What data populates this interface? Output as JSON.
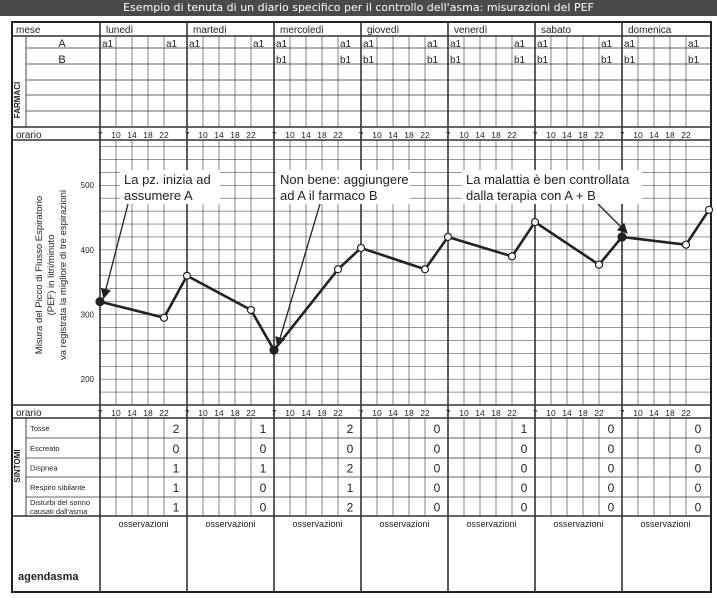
{
  "title": "Esempio di tenuta di un diario specifico per il controllo dell'asma: misurazioni del PEF",
  "days": [
    "lunedì",
    "martedì",
    "mercoledì",
    "giovedì",
    "venerdì",
    "sabato",
    "domenica"
  ],
  "hours": [
    "7",
    "10",
    "14",
    "18",
    "22"
  ],
  "labels": {
    "mese": "mese",
    "farmaci": "FARMACI",
    "orario": "orario",
    "sintomi": "SINTOMI",
    "pef_axis": [
      "Misura del Picco di Flusso Espiratorio",
      "(PEF) in litri/minuto",
      "va registrata la migliore di tre espirazioni"
    ],
    "osservazioni": "osservazioni",
    "brand": "agendasma"
  },
  "drugs": [
    {
      "name": "A",
      "entries": [
        [
          "a1",
          "",
          "",
          "",
          "a1"
        ],
        [
          "a1",
          "",
          "",
          "",
          "a1"
        ],
        [
          "a1",
          "",
          "",
          "",
          "a1"
        ],
        [
          "a1",
          "",
          "",
          "",
          "a1"
        ],
        [
          "a1",
          "",
          "",
          "",
          "a1"
        ],
        [
          "a1",
          "",
          "",
          "",
          "a1"
        ],
        [
          "a1",
          "",
          "",
          "",
          "a1"
        ]
      ]
    },
    {
      "name": "B",
      "entries": [
        [
          "",
          "",
          "",
          "",
          ""
        ],
        [
          "",
          "",
          "",
          "",
          ""
        ],
        [
          "b1",
          "",
          "",
          "",
          "b1"
        ],
        [
          "b1",
          "",
          "",
          "",
          "b1"
        ],
        [
          "b1",
          "",
          "",
          "",
          "b1"
        ],
        [
          "b1",
          "",
          "",
          "",
          "b1"
        ],
        [
          "b1",
          "",
          "",
          "",
          "b1"
        ]
      ]
    }
  ],
  "annotations": [
    {
      "text": [
        "La pz. inizia ad",
        "assumere A"
      ]
    },
    {
      "text": [
        "Non bene: aggiungere",
        "ad A il farmaco B"
      ]
    },
    {
      "text": [
        "La malattia è ben controllata",
        "dalla terapia con A + B"
      ]
    }
  ],
  "symptoms": [
    {
      "name": [
        "Tosse"
      ],
      "values": [
        "2",
        "1",
        "2",
        "0",
        "1",
        "0",
        "0"
      ]
    },
    {
      "name": [
        "Escreato"
      ],
      "values": [
        "0",
        "0",
        "0",
        "0",
        "0",
        "0",
        "0"
      ]
    },
    {
      "name": [
        "Dispnea"
      ],
      "values": [
        "1",
        "1",
        "2",
        "0",
        "0",
        "0",
        "0"
      ]
    },
    {
      "name": [
        "Respiro sibilante"
      ],
      "values": [
        "1",
        "0",
        "1",
        "0",
        "0",
        "0",
        "0"
      ]
    },
    {
      "name": [
        "Disturbi del sonno",
        "causati dall'asma"
      ],
      "values": [
        "1",
        "0",
        "2",
        "0",
        "0",
        "0",
        "0"
      ]
    }
  ],
  "chart_data": {
    "type": "line",
    "ylabel": "Misura del Picco di Flusso Espiratorio (PEF) in litri/minuto",
    "y_ticks": [
      200,
      300,
      400,
      500
    ],
    "ylim": [
      160,
      570
    ],
    "x_unit": "giorno/orario",
    "series": [
      {
        "points": [
          {
            "day": "lunedì",
            "time": "7",
            "pef": 320
          },
          {
            "day": "lunedì",
            "time": "22",
            "pef": 295
          },
          {
            "day": "martedì",
            "time": "7",
            "pef": 360
          },
          {
            "day": "martedì",
            "time": "22",
            "pef": 307
          },
          {
            "day": "mercoledì",
            "time": "7",
            "pef": 245
          },
          {
            "day": "mercoledì",
            "time": "22",
            "pef": 370
          },
          {
            "day": "giovedì",
            "time": "7",
            "pef": 403
          },
          {
            "day": "giovedì",
            "time": "22",
            "pef": 370
          },
          {
            "day": "venerdì",
            "time": "7",
            "pef": 420
          },
          {
            "day": "venerdì",
            "time": "22",
            "pef": 390
          },
          {
            "day": "sabato",
            "time": "7",
            "pef": 443
          },
          {
            "day": "sabato",
            "time": "22",
            "pef": 377
          },
          {
            "day": "domenica",
            "time": "7",
            "pef": 420
          },
          {
            "day": "domenica",
            "time": "22",
            "pef": 408
          },
          {
            "day": "domenica",
            "time": "end",
            "pef": 462
          }
        ]
      }
    ]
  }
}
